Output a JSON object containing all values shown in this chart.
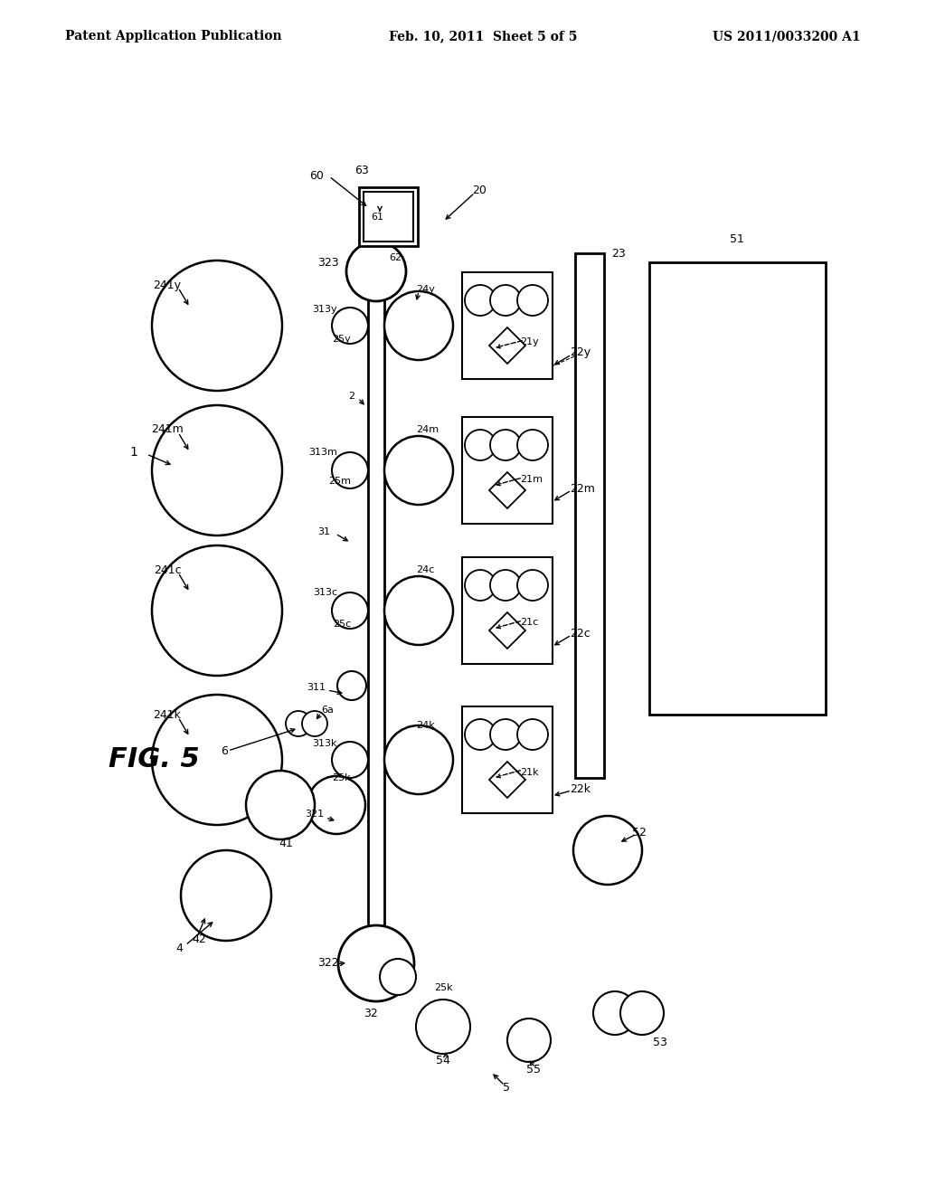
{
  "header_left": "Patent Application Publication",
  "header_center": "Feb. 10, 2011  Sheet 5 of 5",
  "header_right": "US 2011/0033200 A1",
  "bg_color": "#ffffff"
}
